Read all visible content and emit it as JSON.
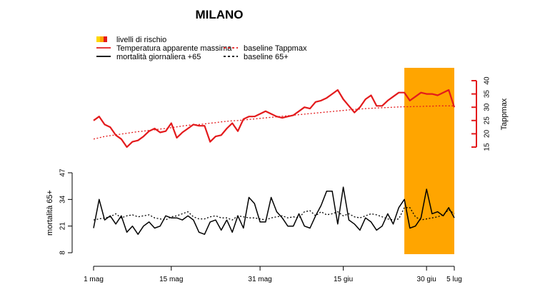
{
  "chart_data": {
    "type": "line",
    "title": "MILANO",
    "legend": {
      "placement": "top-left",
      "items": [
        {
          "label": "livelli di rischio",
          "symbol": "risk-swatches",
          "colors": [
            "#ffd700",
            "#ffa500",
            "#e31a1c"
          ]
        },
        {
          "label": "Temperatura apparente massima",
          "symbol": "solid",
          "color": "#e31a1c"
        },
        {
          "label": "mortalità giornaliera +65",
          "symbol": "solid",
          "color": "#000000"
        },
        {
          "label": "baseline Tappmax",
          "symbol": "dashed",
          "color": "#e31a1c"
        },
        {
          "label": "baseline 65+",
          "symbol": "dashed",
          "color": "#000000"
        }
      ]
    },
    "x_axis": {
      "labels": [
        {
          "label": "1 mag",
          "day": 0
        },
        {
          "label": "15 mag",
          "day": 14
        },
        {
          "label": "31 mag",
          "day": 30
        },
        {
          "label": "15 giu",
          "day": 45
        },
        {
          "label": "30 giu",
          "day": 60
        },
        {
          "label": "5 lug",
          "day": 65
        }
      ]
    },
    "risk_periods": [
      {
        "start_day": 56,
        "end_day": 65,
        "level": "livello 2",
        "color": "#ffa500"
      }
    ],
    "temperature": {
      "axis_label": "Tappmax",
      "axis_side": "right",
      "ylim": [
        15,
        40
      ],
      "ticks": [
        15,
        20,
        25,
        30,
        35,
        40
      ],
      "color": "#e31a1c",
      "series": [
        {
          "name": "Temperatura apparente massima",
          "style": "solid",
          "values": [
            25,
            26.5,
            23.5,
            22.5,
            19.5,
            18,
            15,
            17,
            17.5,
            19,
            21,
            22,
            20.5,
            21,
            24,
            18.5,
            20.5,
            22,
            23.5,
            23,
            23,
            17,
            19,
            19.5,
            22,
            24,
            21,
            25.5,
            26.5,
            26.5,
            27.5,
            28.5,
            27.5,
            26.5,
            26,
            26.5,
            27,
            28.5,
            30,
            29.5,
            32,
            32.5,
            33.5,
            35,
            36.5,
            33,
            30.5,
            28,
            30,
            33,
            34.5,
            30.5,
            30.5,
            32.5,
            34,
            35.5,
            35.5,
            32.5,
            34,
            35.5,
            35,
            35,
            34.5,
            35.5,
            36.5,
            30
          ]
        },
        {
          "name": "baseline Tappmax",
          "style": "dashed",
          "values": [
            18,
            18.5,
            19,
            19.3,
            19.6,
            19.9,
            20.2,
            20.5,
            20.8,
            21,
            21.3,
            21.5,
            21.8,
            22,
            22.3,
            22.6,
            22.9,
            23.2,
            23.4,
            23.5,
            23.7,
            24,
            24.2,
            24.5,
            24.7,
            24.9,
            25,
            25.2,
            25.4,
            25.6,
            25.8,
            26,
            26.2,
            26.4,
            26.6,
            26.8,
            27,
            27.2,
            27.4,
            27.6,
            27.8,
            28,
            28.2,
            28.4,
            28.6,
            28.8,
            29,
            29.2,
            29.3,
            29.5,
            29.6,
            29.7,
            29.8,
            29.9,
            30,
            30.1,
            30.2,
            30.2,
            30.3,
            30.3,
            30.4,
            30.4,
            30.5,
            30.5,
            30.5,
            30.5
          ]
        }
      ]
    },
    "mortality": {
      "axis_label": "mortalità 65+",
      "axis_side": "left",
      "ylim": [
        8,
        47
      ],
      "ticks": [
        8,
        21,
        34,
        47
      ],
      "color": "#000000",
      "series": [
        {
          "name": "mortalità giornaliera +65",
          "style": "solid",
          "values": [
            20,
            34,
            24,
            26,
            22,
            26,
            18,
            21,
            17,
            21,
            23,
            20,
            21,
            26,
            25,
            25,
            24,
            26,
            24,
            18,
            17,
            23,
            24,
            19,
            24,
            18,
            26,
            20,
            35,
            32,
            23,
            23,
            35,
            28,
            25,
            21,
            21,
            27,
            21,
            20,
            26,
            31,
            38,
            38,
            22,
            40,
            24,
            22,
            19,
            25,
            23,
            19,
            21,
            27,
            22,
            30,
            34,
            20,
            21,
            25,
            39,
            27,
            28,
            26,
            30,
            25
          ]
        },
        {
          "name": "baseline 65+",
          "style": "dashed",
          "values": [
            24,
            24.5,
            25,
            25.5,
            27,
            25,
            26,
            26.5,
            25.5,
            26,
            26.5,
            25,
            24.5,
            24,
            25.5,
            26,
            27,
            28,
            25.5,
            24.5,
            24.5,
            25.5,
            26,
            25,
            25,
            24,
            26,
            25.5,
            25,
            25,
            24.5,
            24,
            25,
            25.5,
            26,
            25,
            25.5,
            25,
            28,
            28.5,
            26,
            28,
            26.5,
            27,
            28,
            26,
            27,
            25.5,
            25,
            26,
            27,
            26.5,
            25.5,
            24.5,
            24,
            24.5,
            30,
            30,
            25.5,
            24,
            24.5,
            25,
            25.5,
            26.5,
            29,
            27
          ]
        }
      ]
    }
  }
}
